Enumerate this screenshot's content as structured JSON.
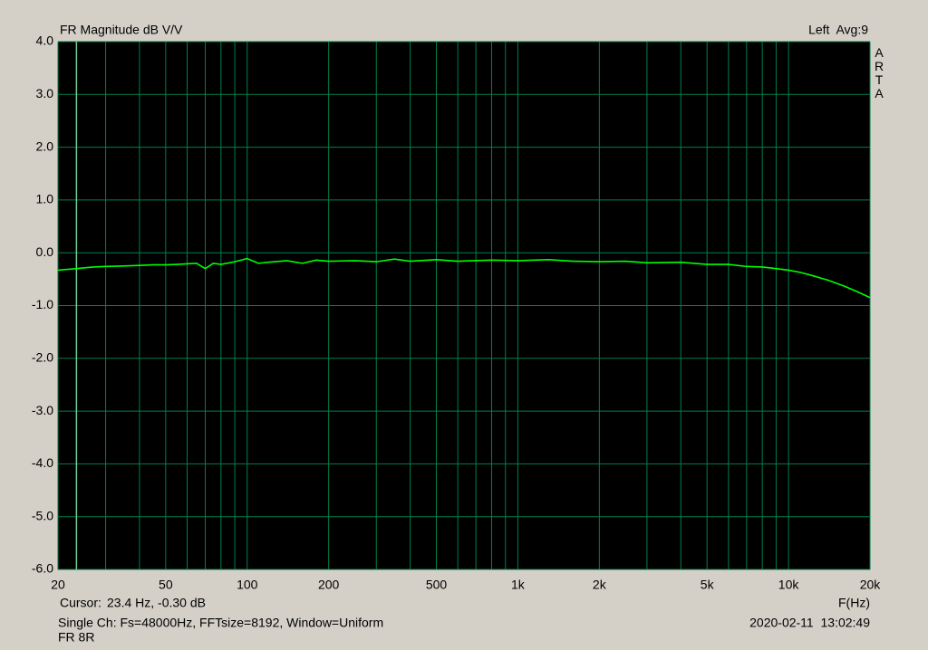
{
  "chart_data": {
    "type": "line",
    "title": "FR Magnitude dB V/V",
    "status": "Left  Avg:9",
    "watermark": "ARTA",
    "xlabel": "F(Hz)",
    "cursor_label": "Cursor:",
    "cursor_text": "23.4 Hz, -0.30 dB",
    "cursor_x": 23.4,
    "info": "Single Ch: Fs=48000Hz, FFTsize=8192, Window=Uniform",
    "timestamp": "2020-02-11  13:02:49",
    "name": "FR 8R",
    "xscale": "log",
    "xlim": [
      20,
      20000
    ],
    "ylim": [
      -6,
      4
    ],
    "xticks": [
      20,
      50,
      100,
      200,
      500,
      {
        "value": 1000,
        "label": "1k"
      },
      {
        "value": 2000,
        "label": "2k"
      },
      {
        "value": 5000,
        "label": "5k"
      },
      {
        "value": 10000,
        "label": "10k"
      },
      {
        "value": 20000,
        "label": "20k"
      }
    ],
    "x_minor_gridlines": [
      30,
      40,
      60,
      70,
      80,
      90,
      300,
      400,
      600,
      700,
      800,
      900,
      3000,
      4000,
      6000,
      7000,
      8000,
      9000
    ],
    "yticks": [
      {
        "value": 4,
        "label": "4.0"
      },
      {
        "value": 3,
        "label": "3.0"
      },
      {
        "value": 2,
        "label": "2.0"
      },
      {
        "value": 1,
        "label": "1.0"
      },
      {
        "value": 0,
        "label": "0.0"
      },
      {
        "value": -1,
        "label": "-1.0"
      },
      {
        "value": -2,
        "label": "-2.0"
      },
      {
        "value": -3,
        "label": "-3.0"
      },
      {
        "value": -4,
        "label": "-4.0"
      },
      {
        "value": -5,
        "label": "-5.0"
      },
      {
        "value": -6,
        "label": "-6.0"
      }
    ],
    "grid": true,
    "color": "#00ff00",
    "x": [
      20,
      23.4,
      27,
      30,
      35,
      40,
      45,
      50,
      55,
      60,
      65,
      70,
      75,
      80,
      90,
      100,
      110,
      120,
      140,
      160,
      180,
      200,
      250,
      300,
      350,
      400,
      500,
      600,
      800,
      1000,
      1300,
      1600,
      2000,
      2500,
      3000,
      4000,
      5000,
      6000,
      7000,
      8000,
      9000,
      10000,
      11000,
      12000,
      14000,
      16000,
      18000,
      20000
    ],
    "values": [
      -0.33,
      -0.3,
      -0.27,
      -0.26,
      -0.25,
      -0.24,
      -0.23,
      -0.23,
      -0.22,
      -0.21,
      -0.2,
      -0.3,
      -0.2,
      -0.22,
      -0.17,
      -0.11,
      -0.2,
      -0.18,
      -0.15,
      -0.2,
      -0.14,
      -0.16,
      -0.15,
      -0.17,
      -0.12,
      -0.16,
      -0.13,
      -0.16,
      -0.14,
      -0.15,
      -0.13,
      -0.16,
      -0.17,
      -0.16,
      -0.19,
      -0.18,
      -0.22,
      -0.22,
      -0.26,
      -0.27,
      -0.3,
      -0.33,
      -0.37,
      -0.42,
      -0.52,
      -0.63,
      -0.74,
      -0.85
    ]
  }
}
